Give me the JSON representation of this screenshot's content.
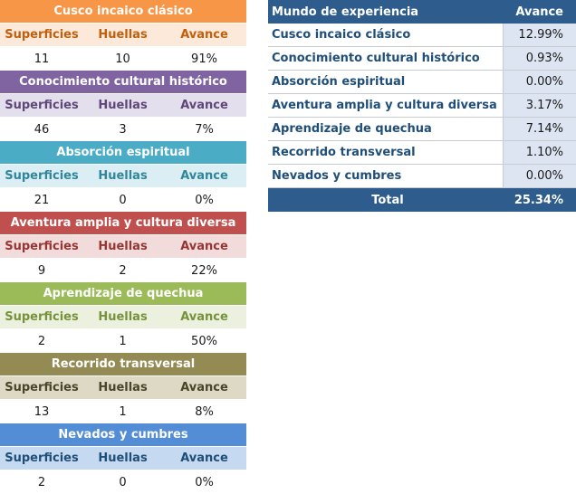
{
  "left_tables": [
    {
      "title": "Cusco incaico clásico",
      "color": "#F79646",
      "light": "#FDE9D9",
      "hdr_color": "#C0600E",
      "h1": "Superficies",
      "h2": "Huellas",
      "h3": "Avance",
      "v1": "11",
      "v2": "10",
      "v3": "91%"
    },
    {
      "title": "Conocimiento cultural histórico",
      "color": "#8064A2",
      "light": "#E4DFEC",
      "hdr_color": "#5F4879",
      "h1": "Superficies",
      "h2": "Huellas",
      "h3": "Avance",
      "v1": "46",
      "v2": "3",
      "v3": "7%"
    },
    {
      "title": "Absorción espiritual",
      "color": "#4BACC6",
      "light": "#DAEEF3",
      "hdr_color": "#31869B",
      "h1": "Superficies",
      "h2": "Huellas",
      "h3": "Avance",
      "v1": "21",
      "v2": "0",
      "v3": "0%"
    },
    {
      "title": "Aventura amplia y cultura diversa",
      "color": "#C0504D",
      "light": "#F2DCDB",
      "hdr_color": "#963634",
      "h1": "Superficies",
      "h2": "Huellas",
      "h3": "Avance",
      "v1": "9",
      "v2": "2",
      "v3": "22%"
    },
    {
      "title": "Aprendizaje de quechua",
      "color": "#9BBB59",
      "light": "#EBF1DE",
      "hdr_color": "#76933C",
      "h1": "Superficies",
      "h2": "Huellas",
      "h3": "Avance",
      "v1": "2",
      "v2": "1",
      "v3": "50%"
    },
    {
      "title": "Recorrido transversal",
      "color": "#948A54",
      "light": "#DDD9C4",
      "hdr_color": "#494529",
      "h1": "Superficies",
      "h2": "Huellas",
      "h3": "Avance",
      "v1": "13",
      "v2": "1",
      "v3": "8%"
    },
    {
      "title": "Nevados y cumbres",
      "color": "#538DD5",
      "light": "#C5D9F1",
      "hdr_color": "#1F4E79",
      "h1": "Superficies",
      "h2": "Huellas",
      "h3": "Avance",
      "v1": "2",
      "v2": "0",
      "v3": "0%"
    }
  ],
  "summary": {
    "header_name": "Mundo de experiencia",
    "header_value": "Avance",
    "rows": [
      {
        "name": "Cusco incaico clásico",
        "value": "12.99%"
      },
      {
        "name": "Conocimiento cultural histórico",
        "value": "0.93%"
      },
      {
        "name": "Absorción espiritual",
        "value": "0.00%"
      },
      {
        "name": "Aventura amplia y cultura diversa",
        "value": "3.17%"
      },
      {
        "name": "Aprendizaje de quechua",
        "value": "7.14%"
      },
      {
        "name": "Recorrido transversal",
        "value": "1.10%"
      },
      {
        "name": "Nevados y cumbres",
        "value": "0.00%"
      }
    ],
    "total_label": "Total",
    "total_value": "25.34%"
  }
}
